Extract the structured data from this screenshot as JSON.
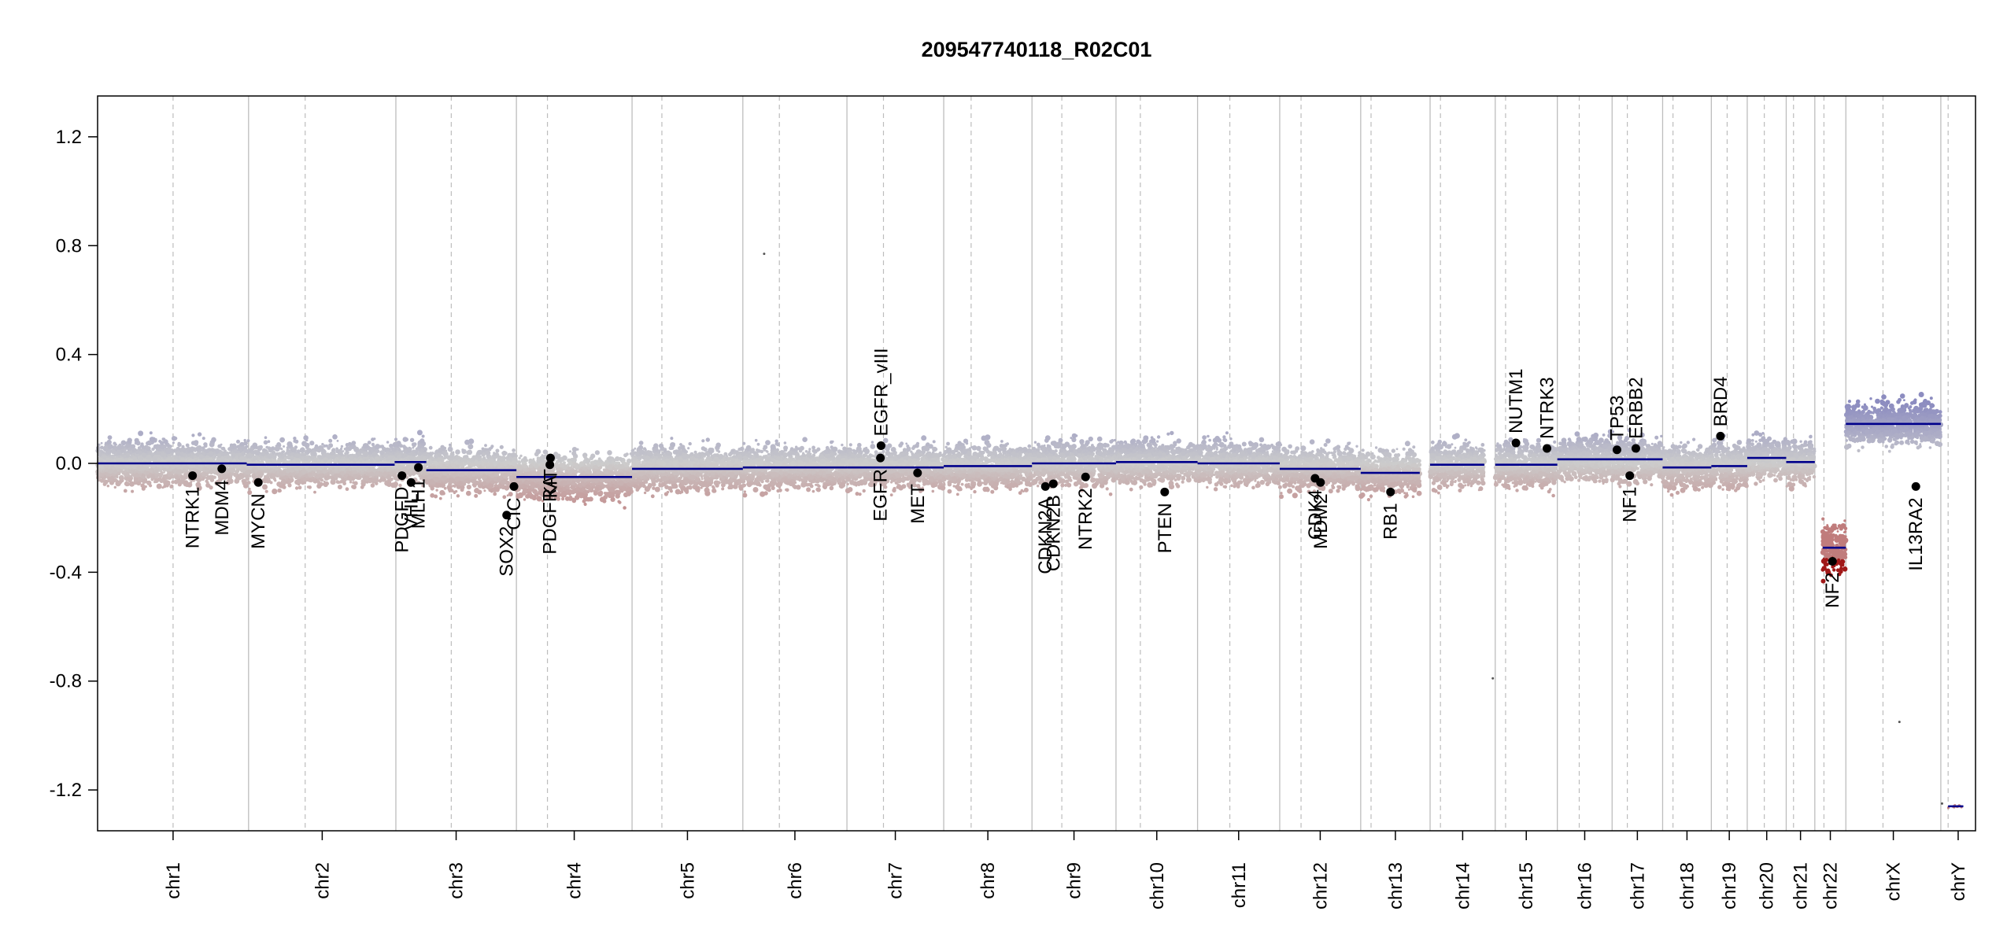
{
  "chart_data": {
    "type": "scatter",
    "title": "209547740118_R02C01",
    "xlabel": "",
    "ylabel": "",
    "ylim": [
      -1.35,
      1.35
    ],
    "y_ticks": [
      1.2,
      0.8,
      0.4,
      0.0,
      -0.4,
      -0.8,
      -1.2
    ],
    "y_tick_labels": [
      "1.2",
      "0.8",
      "0.4",
      "0.0",
      "-0.4",
      "-0.8",
      "-1.2"
    ],
    "grid": false,
    "legend": "none",
    "colors": {
      "gain": "#8c8cc0",
      "neutral": "#cccccc",
      "loss": "#c07c7c",
      "segment": "#00008b",
      "gene_point": "#000000",
      "chrom_border": "#bdbdbd",
      "centromere": "#bdbdbd"
    },
    "chromosomes": [
      {
        "name": "chr1",
        "start": 0,
        "end": 248,
        "centromere": 124
      },
      {
        "name": "chr2",
        "start": 248,
        "end": 490,
        "centromere": 341
      },
      {
        "name": "chr3",
        "start": 490,
        "end": 688,
        "centromere": 581
      },
      {
        "name": "chr4",
        "start": 688,
        "end": 878,
        "centromere": 739
      },
      {
        "name": "chr5",
        "start": 878,
        "end": 1060,
        "centromere": 927
      },
      {
        "name": "chr6",
        "start": 1060,
        "end": 1231,
        "centromere": 1120
      },
      {
        "name": "chr7",
        "start": 1231,
        "end": 1390,
        "centromere": 1291
      },
      {
        "name": "chr8",
        "start": 1390,
        "end": 1535,
        "centromere": 1435
      },
      {
        "name": "chr9",
        "start": 1535,
        "end": 1673,
        "centromere": 1584
      },
      {
        "name": "chr10",
        "start": 1673,
        "end": 1807,
        "centromere": 1713
      },
      {
        "name": "chr11",
        "start": 1807,
        "end": 1942,
        "centromere": 1860
      },
      {
        "name": "chr12",
        "start": 1942,
        "end": 2075,
        "centromere": 1977
      },
      {
        "name": "chr13",
        "start": 2075,
        "end": 2189,
        "centromere": 2092
      },
      {
        "name": "chr14",
        "start": 2189,
        "end": 2296,
        "centromere": 2206
      },
      {
        "name": "chr15",
        "start": 2296,
        "end": 2398,
        "centromere": 2313
      },
      {
        "name": "chr16",
        "start": 2398,
        "end": 2488,
        "centromere": 2434
      },
      {
        "name": "chr17",
        "start": 2488,
        "end": 2571,
        "centromere": 2513
      },
      {
        "name": "chr18",
        "start": 2571,
        "end": 2651,
        "centromere": 2588
      },
      {
        "name": "chr19",
        "start": 2651,
        "end": 2710,
        "centromere": 2677
      },
      {
        "name": "chr20",
        "start": 2710,
        "end": 2774,
        "centromere": 2738
      },
      {
        "name": "chr21",
        "start": 2774,
        "end": 2821,
        "centromere": 2786
      },
      {
        "name": "chr22",
        "start": 2821,
        "end": 2872,
        "centromere": 2836
      },
      {
        "name": "chrX",
        "start": 2872,
        "end": 3028,
        "centromere": 2933
      },
      {
        "name": "chrY",
        "start": 3028,
        "end": 3085,
        "centromere": 3040
      }
    ],
    "segments": [
      {
        "start": 0,
        "end": 245,
        "value": 0.0
      },
      {
        "start": 245,
        "end": 488,
        "value": -0.005
      },
      {
        "start": 488,
        "end": 540,
        "value": 0.005
      },
      {
        "start": 540,
        "end": 688,
        "value": -0.025
      },
      {
        "start": 688,
        "end": 878,
        "value": -0.05
      },
      {
        "start": 878,
        "end": 1060,
        "value": -0.02
      },
      {
        "start": 1060,
        "end": 1231,
        "value": -0.015
      },
      {
        "start": 1231,
        "end": 1390,
        "value": -0.015
      },
      {
        "start": 1390,
        "end": 1535,
        "value": -0.01
      },
      {
        "start": 1535,
        "end": 1673,
        "value": 0.0
      },
      {
        "start": 1673,
        "end": 1807,
        "value": 0.005
      },
      {
        "start": 1807,
        "end": 1942,
        "value": 0.0
      },
      {
        "start": 1942,
        "end": 2075,
        "value": -0.02
      },
      {
        "start": 2075,
        "end": 2172,
        "value": -0.035
      },
      {
        "start": 2189,
        "end": 2278,
        "value": -0.005
      },
      {
        "start": 2296,
        "end": 2398,
        "value": -0.005
      },
      {
        "start": 2398,
        "end": 2571,
        "value": 0.015
      },
      {
        "start": 2571,
        "end": 2651,
        "value": -0.015
      },
      {
        "start": 2651,
        "end": 2710,
        "value": -0.01
      },
      {
        "start": 2710,
        "end": 2774,
        "value": 0.02
      },
      {
        "start": 2774,
        "end": 2821,
        "value": 0.005
      },
      {
        "start": 2834,
        "end": 2872,
        "value": -0.31
      },
      {
        "start": 2872,
        "end": 3028,
        "value": 0.145
      },
      {
        "start": 3040,
        "end": 3065,
        "value": -1.26
      }
    ],
    "genes": [
      {
        "name": "NTRK1",
        "pos": 156,
        "value": -0.045
      },
      {
        "name": "MDM4",
        "pos": 204,
        "value": -0.02
      },
      {
        "name": "MYCN",
        "pos": 264,
        "value": -0.07
      },
      {
        "name": "PDGFD",
        "pos": 500,
        "value": -0.045
      },
      {
        "name": "VHL",
        "pos": 515,
        "value": -0.07
      },
      {
        "name": "MLH1",
        "pos": 527,
        "value": -0.015
      },
      {
        "name": "SOX2",
        "pos": 672,
        "value": -0.19
      },
      {
        "name": "CIC",
        "pos": 684,
        "value": -0.085
      },
      {
        "name": "PDGFRA",
        "pos": 743,
        "value": -0.005
      },
      {
        "name": "KIT",
        "pos": 744,
        "value": 0.02
      },
      {
        "name": "EGFR",
        "pos": 1286,
        "value": 0.02
      },
      {
        "name": "EGFR_vIII",
        "pos": 1287,
        "value": 0.065
      },
      {
        "name": "MET",
        "pos": 1347,
        "value": -0.035
      },
      {
        "name": "CDKN2A",
        "pos": 1557,
        "value": -0.085
      },
      {
        "name": "CDKN2B",
        "pos": 1570,
        "value": -0.075
      },
      {
        "name": "NTRK2",
        "pos": 1623,
        "value": -0.05
      },
      {
        "name": "PTEN",
        "pos": 1753,
        "value": -0.105
      },
      {
        "name": "CDK4",
        "pos": 2000,
        "value": -0.055
      },
      {
        "name": "MDM2",
        "pos": 2009,
        "value": -0.07
      },
      {
        "name": "RB1",
        "pos": 2124,
        "value": -0.105
      },
      {
        "name": "NUTM1",
        "pos": 2330,
        "value": 0.075
      },
      {
        "name": "NTRK3",
        "pos": 2381,
        "value": 0.055
      },
      {
        "name": "TP53",
        "pos": 2496,
        "value": 0.05
      },
      {
        "name": "NF1",
        "pos": 2517,
        "value": -0.045
      },
      {
        "name": "ERBB2",
        "pos": 2527,
        "value": 0.055
      },
      {
        "name": "BRD4",
        "pos": 2666,
        "value": 0.1
      },
      {
        "name": "NF2",
        "pos": 2850,
        "value": -0.36
      },
      {
        "name": "IL13RA2",
        "pos": 2987,
        "value": -0.085
      }
    ],
    "outliers": [
      {
        "pos": 1095,
        "value": 0.77
      },
      {
        "pos": 2292,
        "value": -0.79
      },
      {
        "pos": 2960,
        "value": -0.95
      },
      {
        "pos": 3030,
        "value": -1.25
      }
    ]
  }
}
